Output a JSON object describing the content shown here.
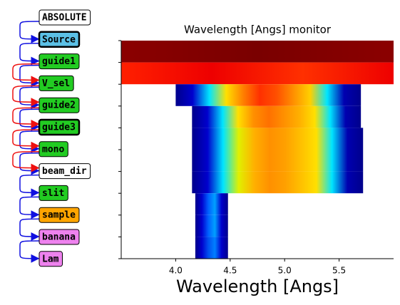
{
  "nodes": [
    {
      "label": "ABSOLUTE",
      "color": "#ffffff",
      "bold_border": false
    },
    {
      "label": "Source",
      "color": "#5bc0e6",
      "bold_border": true
    },
    {
      "label": "guide1",
      "color": "#22cc22",
      "bold_border": false
    },
    {
      "label": "V_sel",
      "color": "#22cc22",
      "bold_border": false
    },
    {
      "label": "guide2",
      "color": "#22cc22",
      "bold_border": false
    },
    {
      "label": "guide3",
      "color": "#22cc22",
      "bold_border": true
    },
    {
      "label": "mono",
      "color": "#22cc22",
      "bold_border": false
    },
    {
      "label": "beam_dir",
      "color": "#ffffff",
      "bold_border": false
    },
    {
      "label": "slit",
      "color": "#22cc22",
      "bold_border": false
    },
    {
      "label": "sample",
      "color": "#ffa500",
      "bold_border": false
    },
    {
      "label": "banana",
      "color": "#ee82ee",
      "bold_border": false
    },
    {
      "label": "Lam",
      "color": "#ee82ee",
      "bold_border": false
    }
  ],
  "chart_data": {
    "type": "bands",
    "title": "Wavelength [Angs] monitor",
    "x_label": "Wavelength [Angs]",
    "xlim": [
      3.5,
      6.0
    ],
    "xticks": [
      {
        "value": 4,
        "label": "4.0"
      },
      4.5,
      {
        "value": 5,
        "label": "5.0"
      },
      5.5
    ],
    "rows": [
      {
        "min": 3.5,
        "max": 6.0,
        "colors": [
          "#8b0000",
          "#7a0000",
          "#8b0000"
        ]
      },
      {
        "min": 3.5,
        "max": 6.0,
        "colors": [
          "#ff2000",
          "#ee0000",
          "#ff3000",
          "#ee0000"
        ]
      },
      {
        "min": 4.0,
        "max": 5.7,
        "colors": [
          "#00008b",
          "#0000cd",
          "#00e5ff",
          "#ffe000",
          "#ff8000",
          "#ff3000",
          "#ff5000",
          "#ff9000",
          "#ffd000",
          "#00e5ff",
          "#0000b0",
          "#00008b"
        ]
      },
      {
        "min": 4.15,
        "max": 5.7,
        "colors": [
          "#00008b",
          "#0000cd",
          "#00e5ff",
          "#ffe000",
          "#ff9000",
          "#ff7000",
          "#ff9000",
          "#ffb000",
          "#ffe000",
          "#00e5ff",
          "#0000b0",
          "#00008b"
        ]
      },
      {
        "min": 4.15,
        "max": 5.72,
        "colors": [
          "#00008b",
          "#0000cd",
          "#00e5ff",
          "#e0f000",
          "#ffb000",
          "#ff9000",
          "#ffa000",
          "#ffc000",
          "#ffe000",
          "#00e5ff",
          "#0000b0",
          "#00008b"
        ]
      },
      {
        "min": 4.15,
        "max": 5.72,
        "colors": [
          "#00008b",
          "#0000cd",
          "#00e5ff",
          "#e0f000",
          "#ffb000",
          "#ff9000",
          "#ffa000",
          "#ffc000",
          "#ffe000",
          "#00e5ff",
          "#0000b0",
          "#00008b"
        ]
      },
      {
        "min": 4.15,
        "max": 5.72,
        "colors": [
          "#00008b",
          "#0000cd",
          "#00e5ff",
          "#e0f000",
          "#ffb000",
          "#ff9000",
          "#ffa000",
          "#ffc000",
          "#ffe000",
          "#00e5ff",
          "#0000b0",
          "#00008b"
        ]
      },
      {
        "min": 4.18,
        "max": 4.48,
        "colors": [
          "#00008b",
          "#0000cd",
          "#0060ff",
          "#00a0ff",
          "#0000cd",
          "#00008b"
        ]
      },
      {
        "min": 4.18,
        "max": 4.48,
        "colors": [
          "#00008b",
          "#0000cd",
          "#0060ff",
          "#00a0ff",
          "#0000cd",
          "#00008b"
        ]
      },
      {
        "min": 4.18,
        "max": 4.48,
        "colors": [
          "#00008b",
          "#0000cd",
          "#0050f0",
          "#0080ff",
          "#0000cd",
          "#00008b"
        ]
      }
    ]
  }
}
